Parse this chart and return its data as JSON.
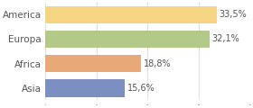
{
  "categories": [
    "America",
    "Europa",
    "Africa",
    "Asia"
  ],
  "values": [
    33.5,
    32.1,
    18.8,
    15.6
  ],
  "labels": [
    "33,5%",
    "32,1%",
    "18,8%",
    "15,6%"
  ],
  "bar_colors": [
    "#f5d483",
    "#b2c98a",
    "#e8a878",
    "#7b8fc0"
  ],
  "background_color": "#ffffff",
  "xlim": [
    0,
    40
  ],
  "grid_color": "#e0e0e0",
  "label_fontsize": 7,
  "category_fontsize": 7.5,
  "bar_height": 0.72,
  "text_color": "#555555"
}
